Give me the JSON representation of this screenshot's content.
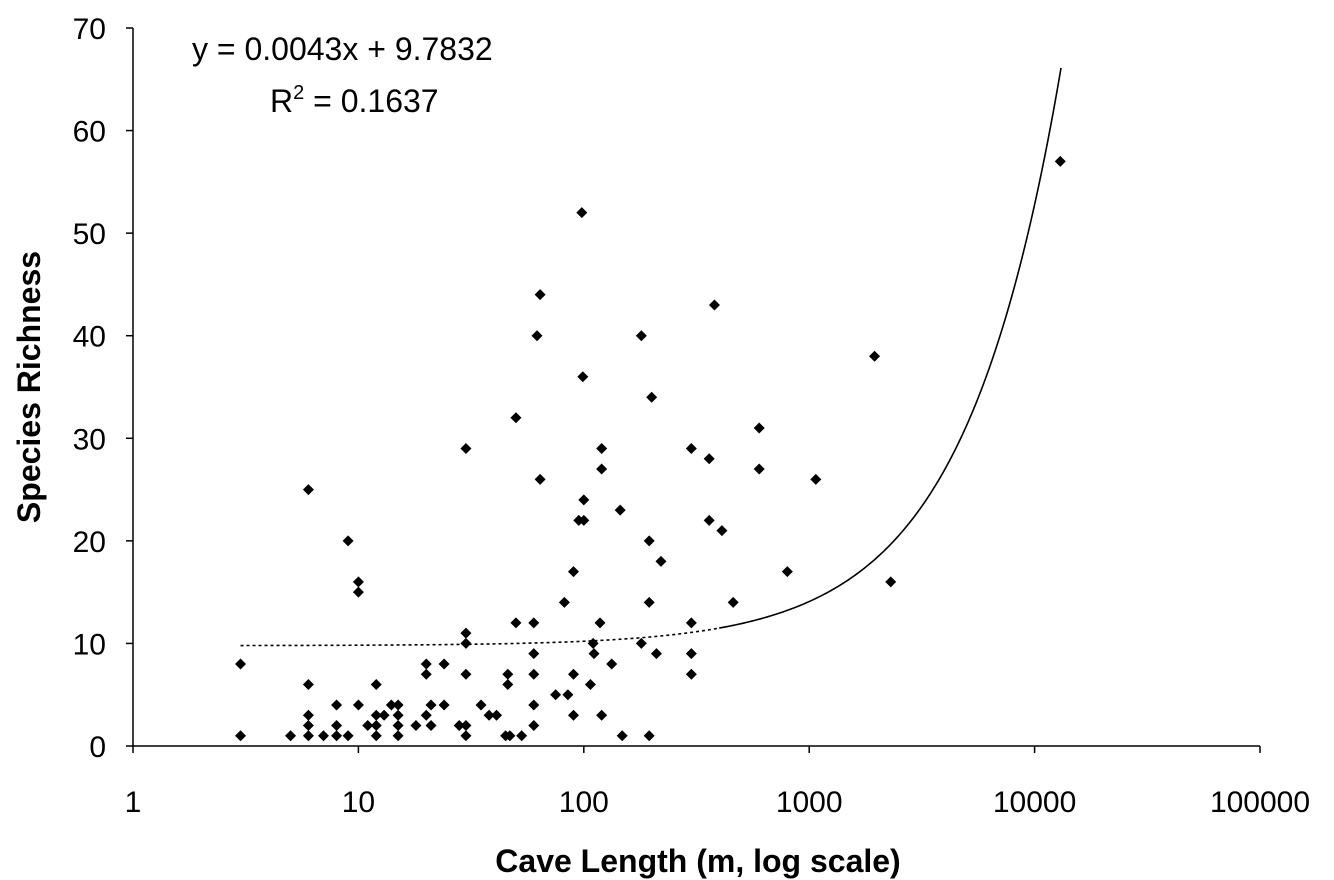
{
  "chart_data": {
    "type": "scatter",
    "title": "",
    "xlabel": "Cave Length (m, log scale)",
    "ylabel": "Species Richness",
    "x_scale": "log",
    "xlim": [
      1,
      100000
    ],
    "ylim": [
      0,
      70
    ],
    "x_tick_labels": [
      "1",
      "10",
      "100",
      "1000",
      "10000",
      "100000"
    ],
    "y_tick_labels": [
      "0",
      "10",
      "20",
      "30",
      "40",
      "50",
      "60",
      "70"
    ],
    "grid": false,
    "legend": "none",
    "trendline": {
      "type": "linear",
      "slope": 0.0043,
      "intercept": 9.7832,
      "x_range": [
        3,
        13100
      ],
      "equation": "y = 0.0043x + 9.7832",
      "r2_label": "R",
      "r2_exponent": "2",
      "r2_value": " = 0.1637"
    },
    "marker_color": "#000000",
    "points": [
      [
        3,
        8
      ],
      [
        3,
        1
      ],
      [
        5,
        1
      ],
      [
        6,
        25
      ],
      [
        6,
        6
      ],
      [
        6,
        3
      ],
      [
        6,
        2
      ],
      [
        6,
        1
      ],
      [
        7,
        1
      ],
      [
        8,
        4
      ],
      [
        8,
        2
      ],
      [
        8,
        1
      ],
      [
        9,
        20
      ],
      [
        9,
        1
      ],
      [
        10,
        16
      ],
      [
        10,
        15
      ],
      [
        10,
        4
      ],
      [
        11,
        2
      ],
      [
        12,
        6
      ],
      [
        12,
        3
      ],
      [
        12,
        2
      ],
      [
        12,
        1
      ],
      [
        13,
        3
      ],
      [
        14,
        4
      ],
      [
        15,
        4
      ],
      [
        15,
        3
      ],
      [
        15,
        2
      ],
      [
        15,
        1
      ],
      [
        18,
        2
      ],
      [
        20,
        8
      ],
      [
        20,
        7
      ],
      [
        20,
        3
      ],
      [
        21,
        4
      ],
      [
        21,
        2
      ],
      [
        24,
        8
      ],
      [
        24,
        4
      ],
      [
        28,
        2
      ],
      [
        30,
        29
      ],
      [
        30,
        11
      ],
      [
        30,
        10
      ],
      [
        30,
        7
      ],
      [
        30,
        2
      ],
      [
        30,
        1
      ],
      [
        35,
        4
      ],
      [
        38,
        3
      ],
      [
        41,
        3
      ],
      [
        45,
        1
      ],
      [
        46,
        7
      ],
      [
        46,
        6
      ],
      [
        47,
        1
      ],
      [
        50,
        32
      ],
      [
        50,
        12
      ],
      [
        53,
        1
      ],
      [
        60,
        12
      ],
      [
        60,
        9
      ],
      [
        60,
        7
      ],
      [
        60,
        4
      ],
      [
        60,
        2
      ],
      [
        62,
        40
      ],
      [
        64,
        44
      ],
      [
        64,
        26
      ],
      [
        75,
        5
      ],
      [
        82,
        14
      ],
      [
        85,
        5
      ],
      [
        90,
        17
      ],
      [
        90,
        7
      ],
      [
        90,
        3
      ],
      [
        95,
        22
      ],
      [
        98,
        52
      ],
      [
        99,
        36
      ],
      [
        100,
        24
      ],
      [
        100,
        22
      ],
      [
        107,
        6
      ],
      [
        110,
        10
      ],
      [
        111,
        9
      ],
      [
        118,
        12
      ],
      [
        120,
        29
      ],
      [
        120,
        27
      ],
      [
        120,
        3
      ],
      [
        133,
        8
      ],
      [
        145,
        23
      ],
      [
        148,
        1
      ],
      [
        180,
        40
      ],
      [
        180,
        10
      ],
      [
        195,
        20
      ],
      [
        195,
        14
      ],
      [
        195,
        1
      ],
      [
        200,
        34
      ],
      [
        210,
        9
      ],
      [
        220,
        18
      ],
      [
        300,
        29
      ],
      [
        300,
        12
      ],
      [
        300,
        9
      ],
      [
        300,
        7
      ],
      [
        360,
        28
      ],
      [
        360,
        22
      ],
      [
        380,
        43
      ],
      [
        410,
        21
      ],
      [
        460,
        14
      ],
      [
        600,
        31
      ],
      [
        600,
        27
      ],
      [
        800,
        17
      ],
      [
        1070,
        26
      ],
      [
        1950,
        38
      ],
      [
        2300,
        16
      ],
      [
        13000,
        57
      ]
    ]
  }
}
